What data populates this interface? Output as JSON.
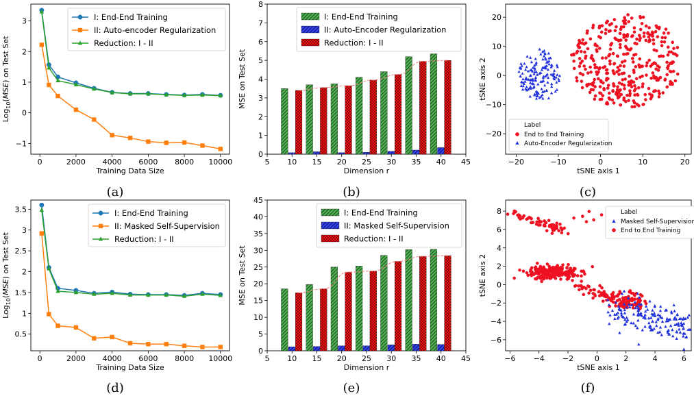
{
  "figure": {
    "panel_labels": [
      "(a)",
      "(b)",
      "(c)",
      "(d)",
      "(e)",
      "(f)"
    ]
  },
  "chart_data": [
    {
      "id": "a",
      "type": "line",
      "xlabel": "Training Data Size",
      "ylabel": "Log10(MSE) on Test Set",
      "xlim": [
        -500,
        10500
      ],
      "ylim": [
        -1.35,
        3.55
      ],
      "xticks": [
        0,
        2000,
        4000,
        6000,
        8000,
        10000
      ],
      "yticks": [
        -1,
        0,
        1,
        2,
        3
      ],
      "legend_position": "top-right",
      "x": [
        100,
        500,
        1000,
        2000,
        3000,
        4000,
        5000,
        6000,
        7000,
        8000,
        9000,
        10000
      ],
      "series": [
        {
          "name": "I:  End-End Training",
          "color": "#1f77b4",
          "marker": "circle",
          "values": [
            3.35,
            1.57,
            1.17,
            0.98,
            0.8,
            0.67,
            0.63,
            0.63,
            0.6,
            0.58,
            0.6,
            0.57
          ]
        },
        {
          "name": "II: Auto-encoder Regularization",
          "color": "#ff7f0e",
          "marker": "square",
          "values": [
            2.22,
            0.91,
            0.55,
            0.1,
            -0.22,
            -0.73,
            -0.82,
            -0.94,
            -0.98,
            -0.97,
            -1.07,
            -1.18
          ]
        },
        {
          "name": "Reduction: I - II",
          "color": "#2ca02c",
          "marker": "triangle",
          "values": [
            3.3,
            1.47,
            1.05,
            0.92,
            0.78,
            0.66,
            0.62,
            0.62,
            0.59,
            0.57,
            0.58,
            0.56
          ]
        }
      ]
    },
    {
      "id": "b",
      "type": "bar",
      "xlabel": "Dimension r",
      "ylabel": "MSE on Test Set",
      "xlim": [
        5,
        45
      ],
      "ylim": [
        0,
        8
      ],
      "xticks": [
        5,
        10,
        15,
        20,
        25,
        30,
        35,
        40,
        45
      ],
      "yticks": [
        0,
        1,
        2,
        3,
        4,
        5,
        6,
        7,
        8
      ],
      "legend_position": "top-left",
      "categories": [
        10,
        15,
        20,
        25,
        30,
        35,
        40
      ],
      "series": [
        {
          "name": "I: End-End Training",
          "color": "#4caf50",
          "hatch": "diag",
          "values": [
            3.5,
            3.7,
            3.75,
            4.1,
            4.4,
            5.2,
            5.35
          ]
        },
        {
          "name": "II: Auto-Encoder Regularization",
          "color": "#3344ee",
          "hatch": "diag",
          "values": [
            0.08,
            0.13,
            0.08,
            0.1,
            0.15,
            0.22,
            0.35
          ]
        },
        {
          "name": "Reduction: I - II",
          "color": "#ee1111",
          "hatch": "dots",
          "values": [
            3.4,
            3.55,
            3.65,
            3.95,
            4.25,
            4.95,
            5.0
          ]
        }
      ],
      "trend": {
        "color": "#f08080",
        "values": [
          3.4,
          3.55,
          3.65,
          3.95,
          4.25,
          4.95,
          5.0
        ]
      }
    },
    {
      "id": "c",
      "type": "scatter",
      "xlabel": "tSNE axis 1",
      "ylabel": "tSNE axis 2",
      "xlim": [
        -22.5,
        21.5
      ],
      "ylim": [
        -27,
        24.5
      ],
      "xticks": [
        -20,
        -10,
        0,
        10,
        20
      ],
      "yticks": [
        -20,
        -10,
        0,
        10,
        20
      ],
      "legend_title": "Label",
      "legend_position": "bottom-left",
      "series": [
        {
          "name": "End to End Training",
          "color": "#ee1122",
          "marker": "circle",
          "cluster": {
            "cx": 6,
            "cy": 5,
            "rx": 13,
            "ry": 16,
            "n": 380
          }
        },
        {
          "name": "Auto-Encoder Regularization",
          "color": "#2233dd",
          "marker": "triangle",
          "cluster": {
            "cx": -14.5,
            "cy": 0,
            "rx": 5,
            "ry": 9,
            "n": 150
          }
        }
      ]
    },
    {
      "id": "d",
      "type": "line",
      "xlabel": "Training Data Size",
      "ylabel": "Log10(MSE) on Test Set",
      "xlim": [
        -500,
        10500
      ],
      "ylim": [
        0.1,
        3.72
      ],
      "xticks": [
        0,
        2000,
        4000,
        6000,
        8000,
        10000
      ],
      "yticks": [
        0.5,
        1.0,
        1.5,
        2.0,
        2.5,
        3.0,
        3.5
      ],
      "legend_position": "top-right",
      "x": [
        100,
        500,
        1000,
        2000,
        3000,
        4000,
        5000,
        6000,
        7000,
        8000,
        9000,
        10000
      ],
      "series": [
        {
          "name": "I:  End-End Training",
          "color": "#1f77b4",
          "marker": "circle",
          "values": [
            3.6,
            2.1,
            1.6,
            1.55,
            1.48,
            1.51,
            1.46,
            1.45,
            1.45,
            1.43,
            1.48,
            1.45
          ]
        },
        {
          "name": "II: Masked Self-Supervision",
          "color": "#ff7f0e",
          "marker": "square",
          "values": [
            2.92,
            0.98,
            0.7,
            0.66,
            0.4,
            0.43,
            0.28,
            0.26,
            0.26,
            0.22,
            0.19,
            0.19
          ]
        },
        {
          "name": "Reduction: I - II",
          "color": "#2ca02c",
          "marker": "triangle",
          "values": [
            3.48,
            2.07,
            1.53,
            1.5,
            1.46,
            1.48,
            1.44,
            1.44,
            1.44,
            1.41,
            1.46,
            1.43
          ]
        }
      ]
    },
    {
      "id": "e",
      "type": "bar",
      "xlabel": "Dimension r",
      "ylabel": "MSE on Test Set",
      "xlim": [
        5,
        45
      ],
      "ylim": [
        0,
        45
      ],
      "xticks": [
        5,
        10,
        15,
        20,
        25,
        30,
        35,
        40,
        45
      ],
      "yticks": [
        0,
        5,
        10,
        15,
        20,
        25,
        30,
        35,
        40,
        45
      ],
      "legend_position": "top-right",
      "categories": [
        10,
        15,
        20,
        25,
        30,
        35,
        40
      ],
      "series": [
        {
          "name": "I: End-End Training",
          "color": "#4caf50",
          "hatch": "diag",
          "values": [
            18.5,
            19.8,
            25.0,
            25.3,
            28.5,
            30.2,
            30.3
          ]
        },
        {
          "name": "II: Masked Self-Supervision",
          "color": "#3344ee",
          "hatch": "diag",
          "values": [
            1.2,
            1.3,
            1.5,
            1.5,
            1.8,
            2.0,
            1.9
          ]
        },
        {
          "name": "Reduction: I - II",
          "color": "#ee1111",
          "hatch": "dots",
          "values": [
            17.3,
            18.5,
            23.5,
            23.8,
            26.7,
            28.2,
            28.4
          ]
        }
      ],
      "trend": {
        "color": "#f08080",
        "values": [
          17.3,
          18.5,
          23.5,
          23.8,
          26.7,
          28.2,
          28.4
        ]
      }
    },
    {
      "id": "f",
      "type": "scatter",
      "xlabel": "tSNE axis 1",
      "ylabel": "tSNE axis 2",
      "xlim": [
        -6.3,
        6.5
      ],
      "ylim": [
        -7.2,
        9.2
      ],
      "xticks": [
        -6,
        -4,
        -2,
        0,
        2,
        4,
        6
      ],
      "yticks": [
        -6,
        -4,
        -2,
        0,
        2,
        4,
        6,
        8
      ],
      "legend_title": "Label",
      "legend_position": "top-right",
      "series": [
        {
          "name": "Masked Self-Supervision",
          "color": "#2233dd",
          "marker": "triangle",
          "cluster": {
            "cx": 4.3,
            "cy": -4.2,
            "rx": 1.9,
            "ry": 1.6,
            "n": 170
          }
        },
        {
          "name": "End to End Training",
          "color": "#ee1122",
          "marker": "circle",
          "cluster": {
            "cx": -2.8,
            "cy": 1.3,
            "rx": 1.5,
            "ry": 0.9,
            "n": 380
          }
        }
      ]
    }
  ]
}
